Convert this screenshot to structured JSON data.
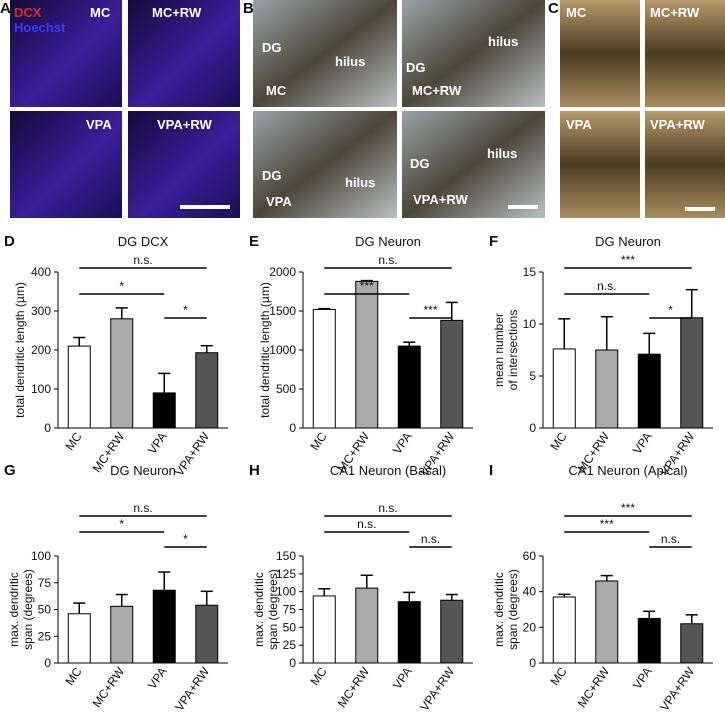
{
  "figure_panels": {
    "A": {
      "letter": "A",
      "stain_labels": [
        "DCX",
        "Hoechst"
      ],
      "tiles": [
        [
          "MC"
        ],
        [
          "MC+RW"
        ],
        [
          "VPA"
        ],
        [
          "VPA+RW"
        ]
      ]
    },
    "B": {
      "letter": "B",
      "tiles": [
        [
          "DG",
          "hilus",
          "MC"
        ],
        [
          "hilus",
          "DG",
          "MC+RW"
        ],
        [
          "DG",
          "hilus",
          "VPA"
        ],
        [
          "DG",
          "hilus",
          "VPA+RW"
        ]
      ]
    },
    "C": {
      "letter": "C",
      "tiles": [
        [
          "MC"
        ],
        [
          "MC+RW"
        ],
        [
          "VPA"
        ],
        [
          "VPA+RW"
        ]
      ]
    }
  },
  "chart_data": [
    {
      "type": "bar",
      "letter": "D",
      "title": "DG DCX",
      "ylabel": [
        "total dendritic length (µm)"
      ],
      "categories": [
        "MC",
        "MC+RW",
        "VPA",
        "VPA+RW"
      ],
      "colors": [
        "#ffffff",
        "#aaaaaa",
        "#000000",
        "#555555"
      ],
      "values": [
        210,
        280,
        90,
        193
      ],
      "errors": [
        22,
        28,
        50,
        18
      ],
      "ylim": [
        0,
        400
      ],
      "yticks": [
        0,
        100,
        200,
        300,
        400
      ],
      "annotations": [
        "n.s.",
        "*",
        "*"
      ]
    },
    {
      "type": "bar",
      "letter": "E",
      "title": "DG Neuron",
      "ylabel": [
        "total dendritic length (µm)"
      ],
      "categories": [
        "MC",
        "MC+RW",
        "VPA",
        "VPA+RW"
      ],
      "colors": [
        "#ffffff",
        "#aaaaaa",
        "#000000",
        "#555555"
      ],
      "values": [
        1520,
        1880,
        1050,
        1380
      ],
      "errors": [
        10,
        10,
        50,
        230
      ],
      "ylim": [
        0,
        2000
      ],
      "yticks": [
        0,
        500,
        1000,
        1500,
        2000
      ],
      "annotations": [
        "n.s.",
        "***",
        "***"
      ]
    },
    {
      "type": "bar",
      "letter": "F",
      "title": "DG Neuron",
      "ylabel": [
        "mean number",
        "of intersections"
      ],
      "categories": [
        "MC",
        "MC+RW",
        "VPA",
        "VPA+RW"
      ],
      "colors": [
        "#ffffff",
        "#aaaaaa",
        "#000000",
        "#555555"
      ],
      "values": [
        7.6,
        7.5,
        7.1,
        10.6
      ],
      "errors": [
        2.9,
        3.2,
        2.0,
        2.7
      ],
      "ylim": [
        0,
        15
      ],
      "yticks": [
        0,
        5,
        10,
        15
      ],
      "annotations": [
        "***",
        "n.s.",
        "*"
      ]
    },
    {
      "type": "bar",
      "letter": "G",
      "title": "DG Neuron",
      "ylabel": [
        "max. dendritic",
        "span (degrees)"
      ],
      "categories": [
        "MC",
        "MC+RW",
        "VPA",
        "VPA+RW"
      ],
      "colors": [
        "#ffffff",
        "#aaaaaa",
        "#000000",
        "#555555"
      ],
      "values": [
        46,
        53,
        68,
        54
      ],
      "errors": [
        10,
        11,
        17,
        13
      ],
      "ylim": [
        0,
        100
      ],
      "yticks": [
        0,
        25,
        50,
        75,
        100
      ],
      "annotations": [
        "n.s.",
        "*",
        "*"
      ]
    },
    {
      "type": "bar",
      "letter": "H",
      "title": "CA1 Neuron (Basal)",
      "ylabel": [
        "max. dendritic",
        "span (degrees)"
      ],
      "categories": [
        "MC",
        "MC+RW",
        "VPA",
        "VPA+RW"
      ],
      "colors": [
        "#ffffff",
        "#aaaaaa",
        "#000000",
        "#555555"
      ],
      "values": [
        94,
        105,
        86,
        88
      ],
      "errors": [
        10,
        18,
        13,
        8
      ],
      "ylim": [
        0,
        150
      ],
      "yticks": [
        0,
        25,
        50,
        75,
        100,
        125,
        150
      ],
      "annotations": [
        "n.s.",
        "n.s.",
        "n.s."
      ]
    },
    {
      "type": "bar",
      "letter": "I",
      "title": "CA1 Neuron (Apical)",
      "ylabel": [
        "max. dendritic",
        "span (degrees)"
      ],
      "categories": [
        "MC",
        "MC+RW",
        "VPA",
        "VPA+RW"
      ],
      "colors": [
        "#ffffff",
        "#aaaaaa",
        "#000000",
        "#555555"
      ],
      "values": [
        37,
        46,
        25,
        22
      ],
      "errors": [
        1.5,
        3,
        4,
        5
      ],
      "ylim": [
        0,
        60
      ],
      "yticks": [
        0,
        20,
        40,
        60
      ],
      "annotations": [
        "***",
        "***",
        "n.s."
      ]
    }
  ]
}
